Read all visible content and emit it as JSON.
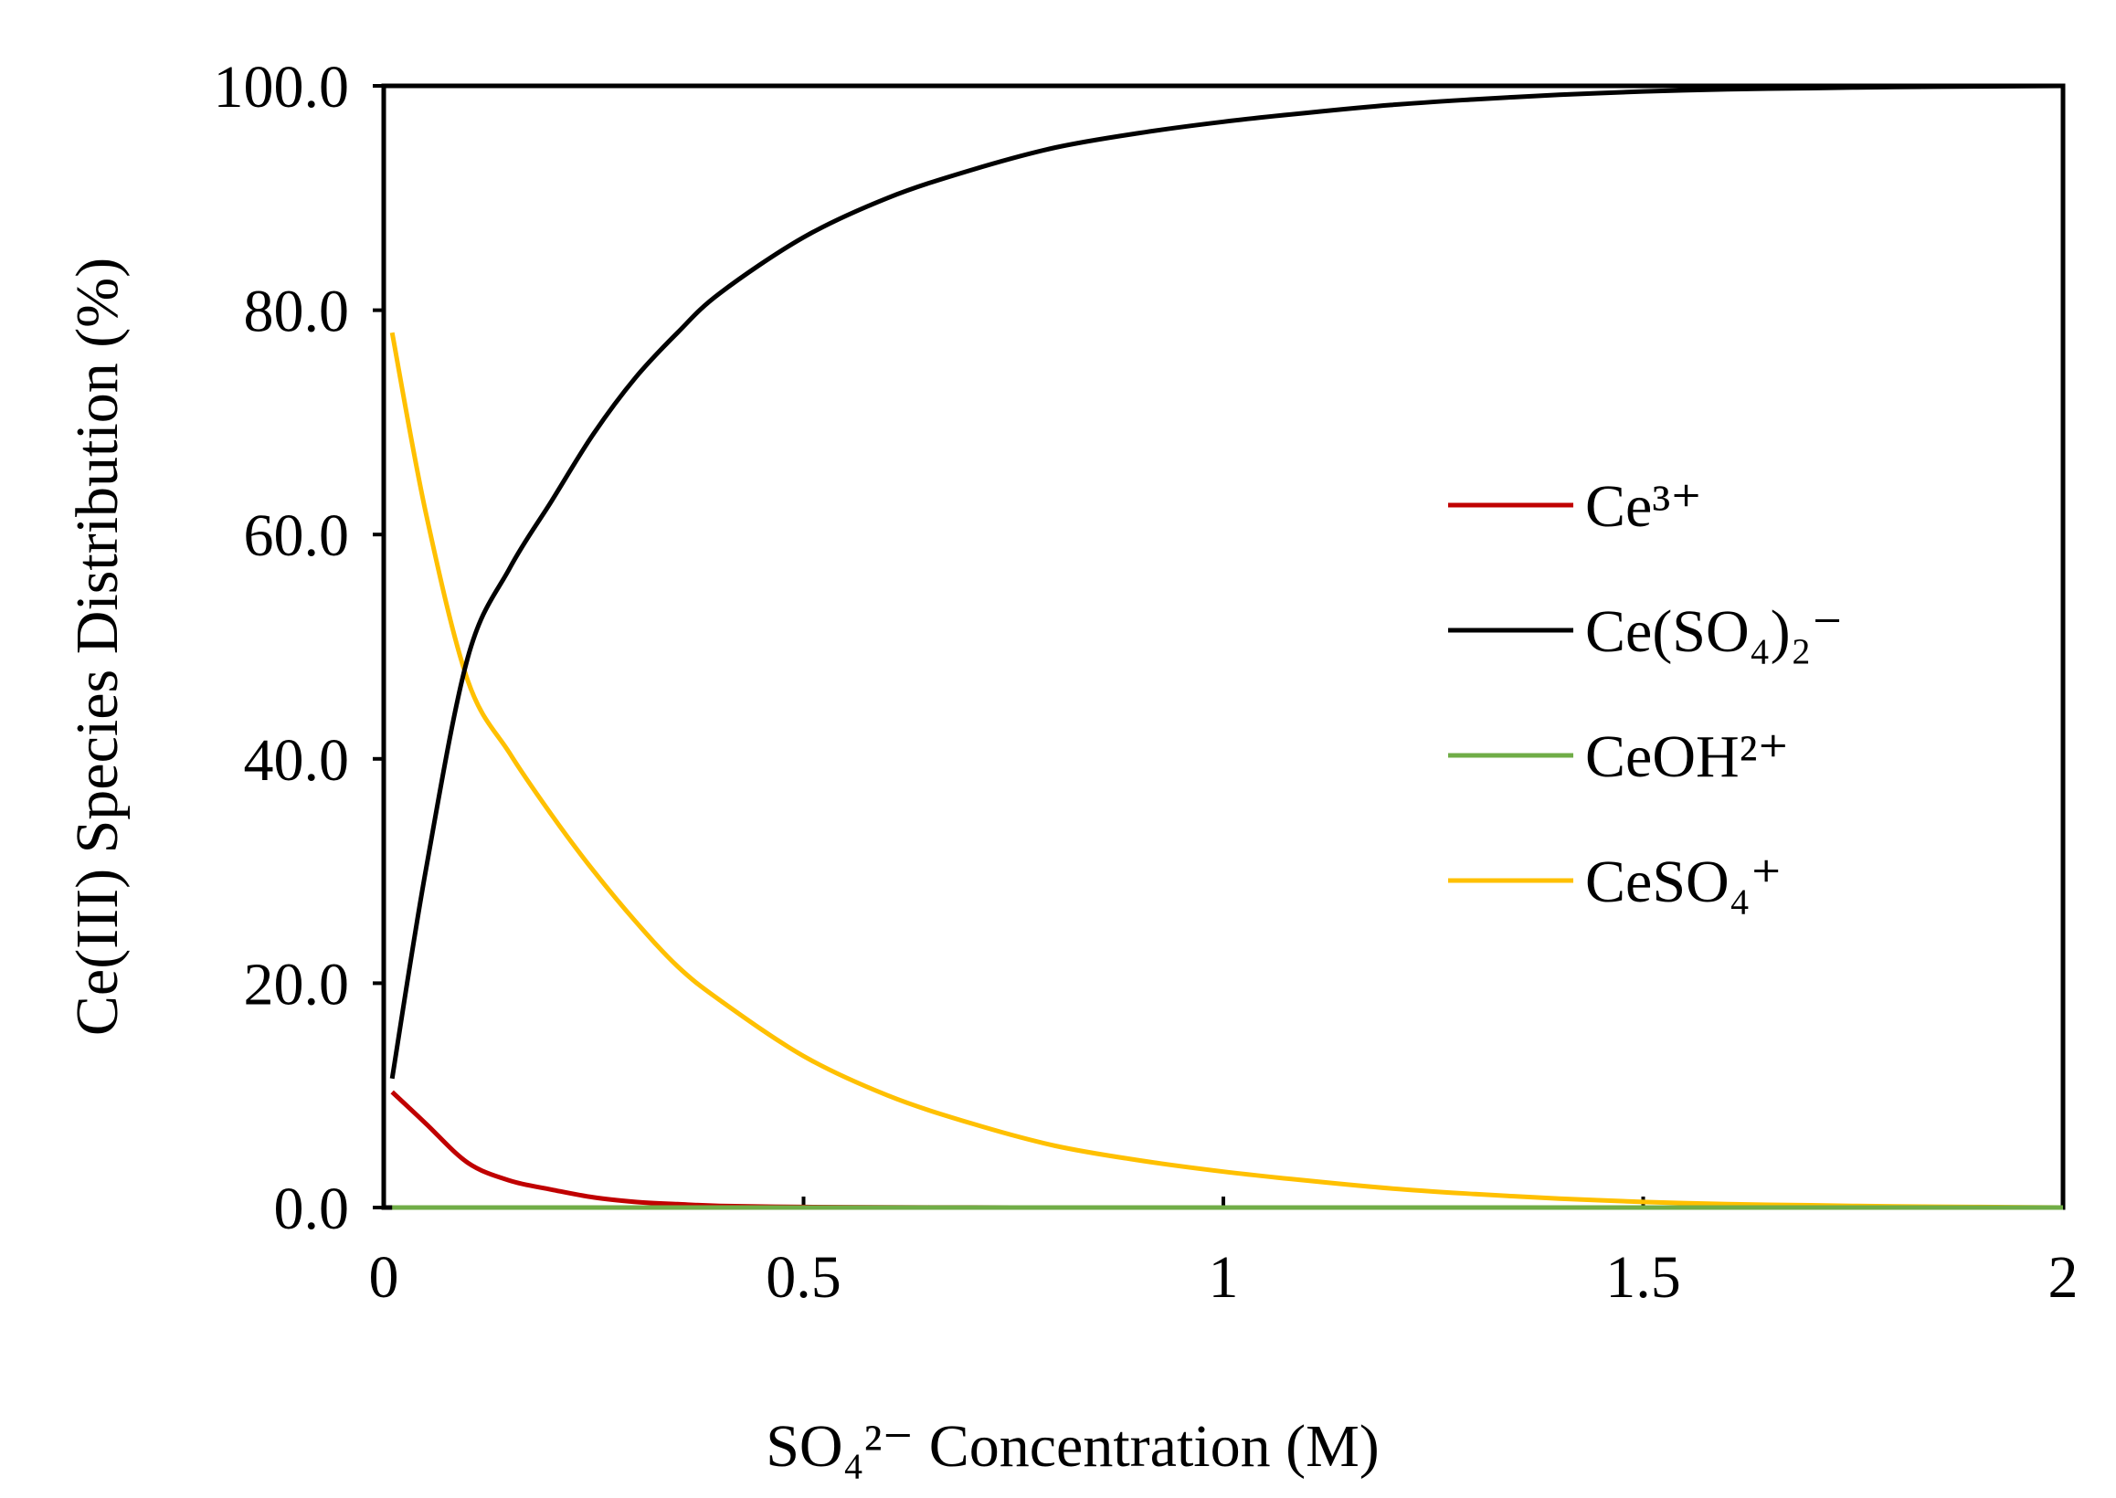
{
  "chart_data": {
    "type": "line",
    "title": "",
    "xlabel": "SO₄²⁻ Concentration (M)",
    "ylabel": "Ce(III) Species Distribution (%)",
    "xlim": [
      0,
      2
    ],
    "ylim": [
      0,
      100
    ],
    "x_ticks": [
      "0",
      "0.5",
      "1",
      "1.5",
      "2"
    ],
    "y_ticks": [
      "0.0",
      "20.0",
      "40.0",
      "60.0",
      "80.0",
      "100.0"
    ],
    "x_tick_values": [
      0,
      0.5,
      1,
      1.5,
      2
    ],
    "y_tick_values": [
      0,
      20,
      40,
      60,
      80,
      100
    ],
    "grid": false,
    "legend_position": "right",
    "x": [
      0.01,
      0.05,
      0.1,
      0.15,
      0.2,
      0.25,
      0.3,
      0.35,
      0.4,
      0.5,
      0.6,
      0.7,
      0.8,
      0.9,
      1.0,
      1.1,
      1.2,
      1.3,
      1.4,
      1.5,
      1.6,
      1.7,
      1.8,
      1.9,
      2.0
    ],
    "series": [
      {
        "name": "Ce³⁺",
        "color": "#c00000",
        "values": [
          10.3,
          7.5,
          4.0,
          2.4,
          1.6,
          0.9,
          0.5,
          0.3,
          0.15,
          0.05,
          0.02,
          0.01,
          0,
          0,
          0,
          0,
          0,
          0,
          0,
          0,
          0,
          0,
          0,
          0,
          0
        ]
      },
      {
        "name": "Ce(SO₄)₂⁻",
        "color": "#000000",
        "values": [
          11.5,
          30.0,
          49.0,
          57.0,
          63.0,
          69.0,
          74.0,
          78.0,
          81.5,
          86.5,
          90.0,
          92.5,
          94.5,
          95.8,
          96.8,
          97.6,
          98.3,
          98.8,
          99.2,
          99.5,
          99.7,
          99.8,
          99.9,
          99.95,
          100.0
        ]
      },
      {
        "name": "CeOH²⁺",
        "color": "#70ad47",
        "values": [
          0,
          0,
          0,
          0,
          0,
          0,
          0,
          0,
          0,
          0,
          0,
          0,
          0,
          0,
          0,
          0,
          0,
          0,
          0,
          0,
          0,
          0,
          0,
          0,
          0
        ]
      },
      {
        "name": "CeSO₄⁺",
        "color": "#ffc000",
        "values": [
          78.0,
          62.0,
          47.0,
          40.5,
          35.0,
          30.0,
          25.5,
          21.5,
          18.5,
          13.5,
          10.0,
          7.5,
          5.5,
          4.2,
          3.2,
          2.4,
          1.7,
          1.2,
          0.8,
          0.5,
          0.3,
          0.2,
          0.1,
          0.05,
          0.0
        ]
      }
    ]
  }
}
